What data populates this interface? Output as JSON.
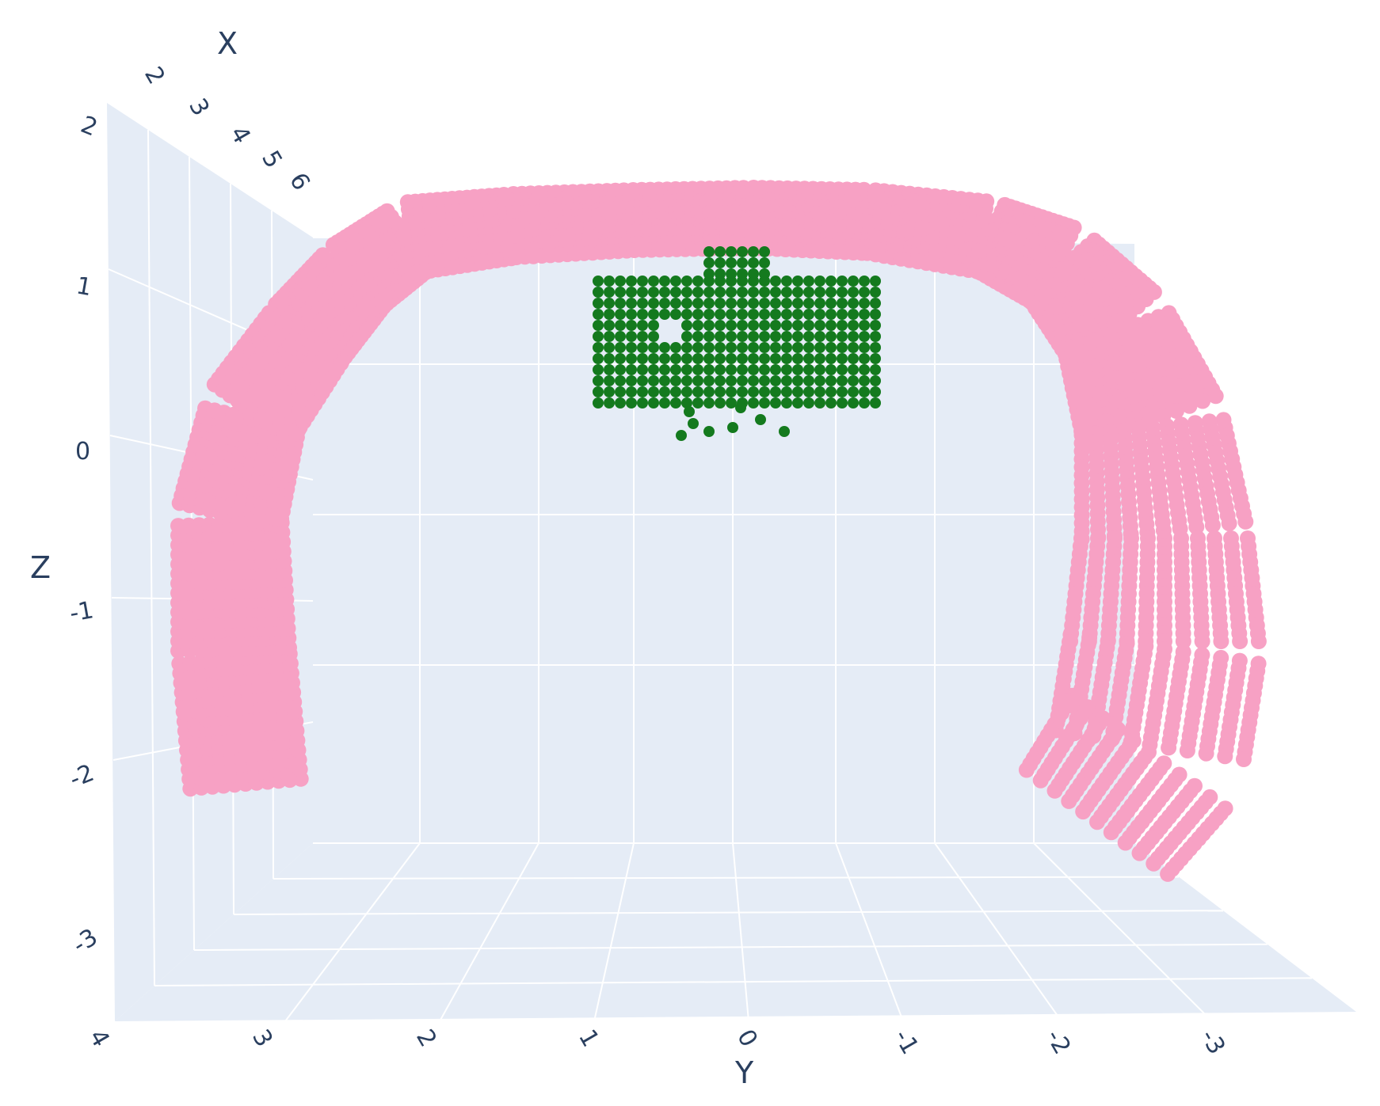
{
  "chart_data": {
    "type": "scatter",
    "dimension": "3d",
    "title": "",
    "axes": {
      "x": {
        "label": "X",
        "ticks": [
          2,
          3,
          4,
          5,
          6
        ]
      },
      "y": {
        "label": "Y",
        "ticks": [
          4,
          3,
          2,
          1,
          0,
          -1,
          -2,
          -3
        ]
      },
      "z": {
        "label": "Z",
        "ticks": [
          2,
          1,
          0,
          -1,
          -2,
          -3
        ]
      }
    },
    "grid": true,
    "legend": "none",
    "colors": {
      "background": "#e5ecf6",
      "grid": "#ffffff",
      "pink_series": "#f7a1c4",
      "green_series": "#147a1e",
      "text": "#2a3f5f"
    },
    "series": [
      {
        "color": "#f7a1c4",
        "shape": "arch",
        "y_range": [
          -3.0,
          3.2
        ],
        "z_range": [
          -2.4,
          1.4
        ]
      },
      {
        "color": "#147a1e",
        "shape": "block",
        "y_range": [
          -0.8,
          1.0
        ],
        "z_range": [
          0.1,
          1.1
        ]
      }
    ]
  }
}
